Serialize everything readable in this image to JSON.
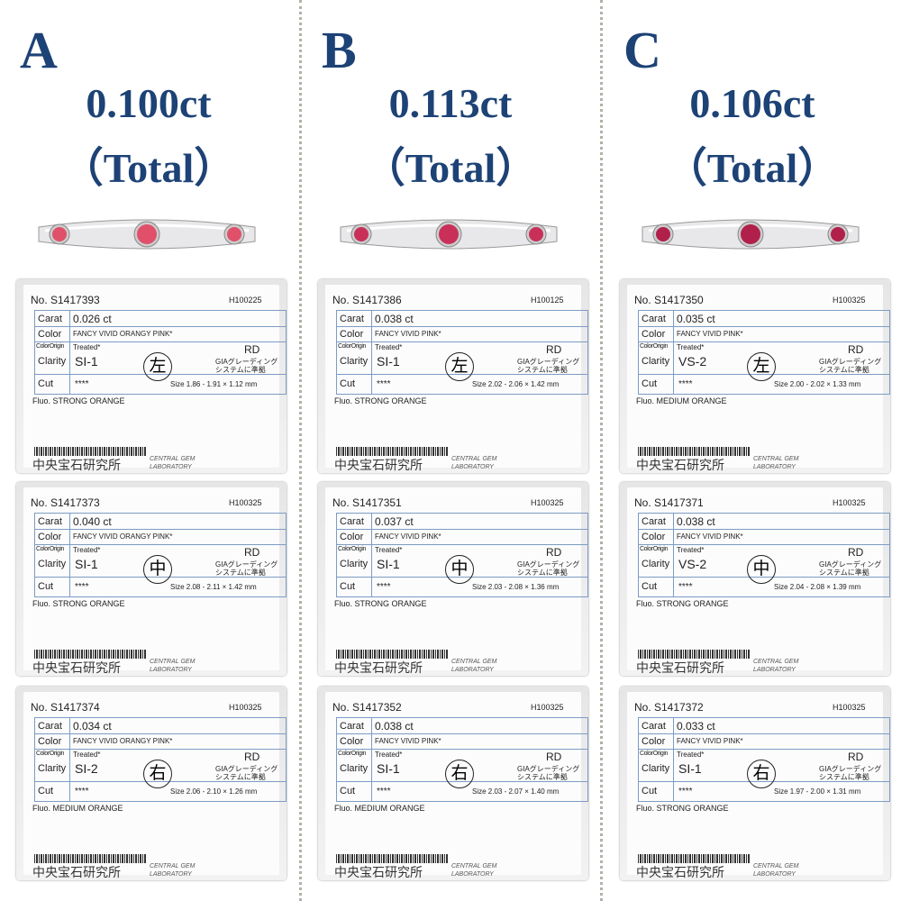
{
  "labels": {
    "carat": "Carat",
    "color": "Color",
    "color_origin": "ColorOrigin",
    "clarity": "Clarity",
    "cut": "Cut",
    "cut_grade": "****",
    "rd": "RD",
    "gia_1": "GIAグレーディング",
    "gia_2": "システムに準拠",
    "lab_jp": "中央宝石研究所",
    "lab_en_1": "CENTRAL GEM",
    "lab_en_2": "LABORATORY"
  },
  "columns": [
    {
      "letter": "A",
      "total": "0.100ct",
      "total_note": "（Total）",
      "cards": [
        {
          "no": "No. S1417393",
          "code": "H100225",
          "carat": "0.026 ct",
          "color": "FANCY VIVID ORANGY PINK*",
          "origin": "Treated*",
          "clarity": "SI-1",
          "position": "左",
          "size": "Size 1.86 - 1.91 × 1.12 mm",
          "fluo": "Fluo. STRONG ORANGE"
        },
        {
          "no": "No. S1417373",
          "code": "H100325",
          "carat": "0.040 ct",
          "color": "FANCY VIVID ORANGY PINK*",
          "origin": "Treated*",
          "clarity": "SI-1",
          "position": "中",
          "size": "Size 2.08 - 2.11 × 1.42 mm",
          "fluo": "Fluo. STRONG ORANGE"
        },
        {
          "no": "No. S1417374",
          "code": "H100325",
          "carat": "0.034 ct",
          "color": "FANCY VIVID ORANGY PINK*",
          "origin": "Treated*",
          "clarity": "SI-2",
          "position": "右",
          "size": "Size 2.06 - 2.10 × 1.26 mm",
          "fluo": "Fluo. MEDIUM ORANGE"
        }
      ]
    },
    {
      "letter": "B",
      "total": "0.113ct",
      "total_note": "（Total）",
      "cards": [
        {
          "no": "No. S1417386",
          "code": "H100125",
          "carat": "0.038 ct",
          "color": "FANCY VIVID PINK*",
          "origin": "Treated*",
          "clarity": "SI-1",
          "position": "左",
          "size": "Size 2.02 - 2.06 × 1.42 mm",
          "fluo": "Fluo. STRONG ORANGE"
        },
        {
          "no": "No. S1417351",
          "code": "H100325",
          "carat": "0.037 ct",
          "color": "FANCY VIVID PINK*",
          "origin": "Treated*",
          "clarity": "SI-1",
          "position": "中",
          "size": "Size 2.03 - 2.08 × 1.36 mm",
          "fluo": "Fluo. STRONG ORANGE"
        },
        {
          "no": "No. S1417352",
          "code": "H100325",
          "carat": "0.038 ct",
          "color": "FANCY VIVID PINK*",
          "origin": "Treated*",
          "clarity": "SI-1",
          "position": "右",
          "size": "Size 2.03 - 2.07 × 1.40 mm",
          "fluo": "Fluo. MEDIUM ORANGE"
        }
      ]
    },
    {
      "letter": "C",
      "total": "0.106ct",
      "total_note": "（Total）",
      "cards": [
        {
          "no": "No. S1417350",
          "code": "H100325",
          "carat": "0.035 ct",
          "color": "FANCY VIVID PINK*",
          "origin": "Treated*",
          "clarity": "VS-2",
          "position": "左",
          "size": "Size 2.00 - 2.02 × 1.33 mm",
          "fluo": "Fluo. MEDIUM ORANGE"
        },
        {
          "no": "No. S1417371",
          "code": "H100325",
          "carat": "0.038 ct",
          "color": "FANCY VIVID PINK*",
          "origin": "Treated*",
          "clarity": "VS-2",
          "position": "中",
          "size": "Size 2.04 - 2.08 × 1.39 mm",
          "fluo": "Fluo. STRONG ORANGE"
        },
        {
          "no": "No. S1417372",
          "code": "H100325",
          "carat": "0.033 ct",
          "color": "FANCY VIVID PINK*",
          "origin": "Treated*",
          "clarity": "SI-1",
          "position": "右",
          "size": "Size 1.97 - 2.00 × 1.31 mm",
          "fluo": "Fluo. STRONG ORANGE"
        }
      ]
    }
  ]
}
